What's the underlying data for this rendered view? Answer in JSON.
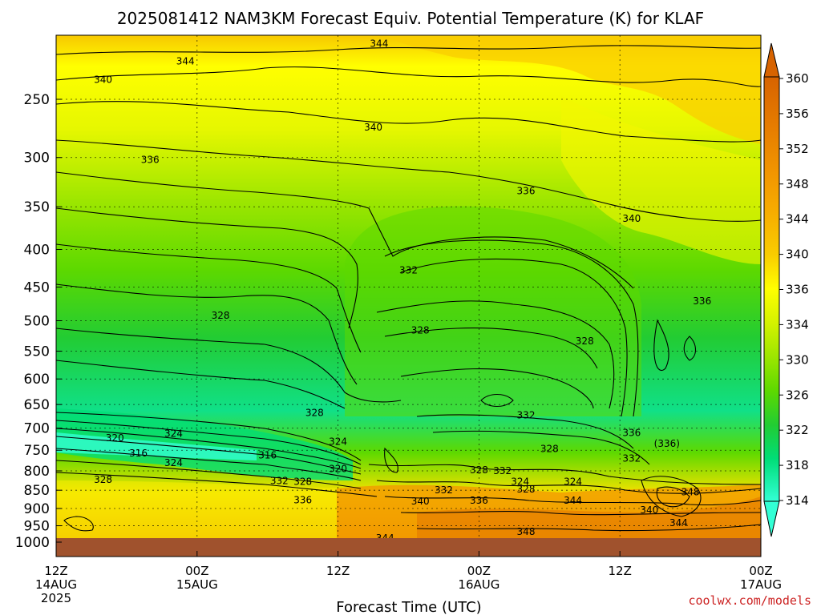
{
  "title": "2025081412 NAM3KM Forecast Equiv. Potential Temperature (K) for KLAF",
  "x_axis_label": "Forecast Time (UTC)",
  "credit": "coolwx.com/models",
  "x_ticks": [
    {
      "h": 0,
      "l1": "12Z",
      "l2": "14AUG",
      "l3": "2025"
    },
    {
      "h": 12,
      "l1": "00Z",
      "l2": "15AUG",
      "l3": ""
    },
    {
      "h": 24,
      "l1": "12Z",
      "l2": "",
      "l3": ""
    },
    {
      "h": 36,
      "l1": "00Z",
      "l2": "16AUG",
      "l3": ""
    },
    {
      "h": 48,
      "l1": "12Z",
      "l2": "",
      "l3": ""
    },
    {
      "h": 60,
      "l1": "00Z",
      "l2": "17AUG",
      "l3": ""
    }
  ],
  "y_ticks": [
    "250",
    "300",
    "350",
    "400",
    "450",
    "500",
    "550",
    "600",
    "650",
    "700",
    "750",
    "800",
    "850",
    "900",
    "950",
    "1000"
  ],
  "colorbar": {
    "levels": [
      "360",
      "356",
      "352",
      "348",
      "344",
      "340",
      "336",
      "334",
      "330",
      "326",
      "322",
      "318",
      "314"
    ],
    "colors": [
      "#d76300",
      "#e67d00",
      "#f19400",
      "#f7ad00",
      "#f9cd00",
      "#ffff00",
      "#d4f200",
      "#9ce600",
      "#5dd900",
      "#22cc33",
      "#00dd77",
      "#10ecb0",
      "#33ffd5"
    ]
  },
  "chart_data": {
    "type": "heatmap",
    "title": "2025081412 NAM3KM Forecast Equiv. Potential Temperature (K) for KLAF",
    "xlabel": "Forecast Time (UTC)",
    "ylabel": "",
    "x_range_hours": [
      0,
      60
    ],
    "y_range_hPa": [
      1000,
      200
    ],
    "y_scale": "log",
    "units": "K",
    "colorbar_range": [
      314,
      360
    ],
    "grid": true,
    "contour_labels": [
      {
        "h": 27.5,
        "p": 210,
        "v": "344"
      },
      {
        "h": 11.0,
        "p": 222,
        "v": "344"
      },
      {
        "h": 4.0,
        "p": 235,
        "v": "340"
      },
      {
        "h": 27.0,
        "p": 273,
        "v": "340"
      },
      {
        "h": 8.0,
        "p": 302,
        "v": "336"
      },
      {
        "h": 40.0,
        "p": 333,
        "v": "336"
      },
      {
        "h": 49.0,
        "p": 363,
        "v": "340"
      },
      {
        "h": 30.0,
        "p": 427,
        "v": "332"
      },
      {
        "h": 55.0,
        "p": 470,
        "v": "336"
      },
      {
        "h": 14.0,
        "p": 492,
        "v": "328"
      },
      {
        "h": 31.0,
        "p": 515,
        "v": "328"
      },
      {
        "h": 45.0,
        "p": 533,
        "v": "328"
      },
      {
        "h": 22.0,
        "p": 667,
        "v": "328"
      },
      {
        "h": 40.0,
        "p": 672,
        "v": "332"
      },
      {
        "h": 10.0,
        "p": 712,
        "v": "324"
      },
      {
        "h": 5.0,
        "p": 722,
        "v": "320"
      },
      {
        "h": 24.0,
        "p": 730,
        "v": "324"
      },
      {
        "h": 49.0,
        "p": 710,
        "v": "336"
      },
      {
        "h": 52.0,
        "p": 735,
        "v": "(336)"
      },
      {
        "h": 42.0,
        "p": 747,
        "v": "328"
      },
      {
        "h": 7.0,
        "p": 757,
        "v": "316"
      },
      {
        "h": 18.0,
        "p": 762,
        "v": "316"
      },
      {
        "h": 49.0,
        "p": 770,
        "v": "332"
      },
      {
        "h": 10.0,
        "p": 780,
        "v": "324"
      },
      {
        "h": 24.0,
        "p": 795,
        "v": "320"
      },
      {
        "h": 36.0,
        "p": 798,
        "v": "328"
      },
      {
        "h": 38.0,
        "p": 800,
        "v": "332"
      },
      {
        "h": 39.5,
        "p": 828,
        "v": "324"
      },
      {
        "h": 44.0,
        "p": 828,
        "v": "324"
      },
      {
        "h": 4.0,
        "p": 822,
        "v": "328"
      },
      {
        "h": 19.0,
        "p": 825,
        "v": "332"
      },
      {
        "h": 21.0,
        "p": 828,
        "v": "328"
      },
      {
        "h": 33.0,
        "p": 850,
        "v": "332"
      },
      {
        "h": 40.0,
        "p": 848,
        "v": "328"
      },
      {
        "h": 21.0,
        "p": 877,
        "v": "336"
      },
      {
        "h": 31.0,
        "p": 880,
        "v": "340"
      },
      {
        "h": 36.0,
        "p": 878,
        "v": "336"
      },
      {
        "h": 44.0,
        "p": 878,
        "v": "344"
      },
      {
        "h": 54.0,
        "p": 855,
        "v": "348"
      },
      {
        "h": 50.5,
        "p": 905,
        "v": "340"
      },
      {
        "h": 53.0,
        "p": 942,
        "v": "344"
      },
      {
        "h": 40.0,
        "p": 968,
        "v": "348"
      },
      {
        "h": 28.0,
        "p": 988,
        "v": "344"
      }
    ]
  }
}
